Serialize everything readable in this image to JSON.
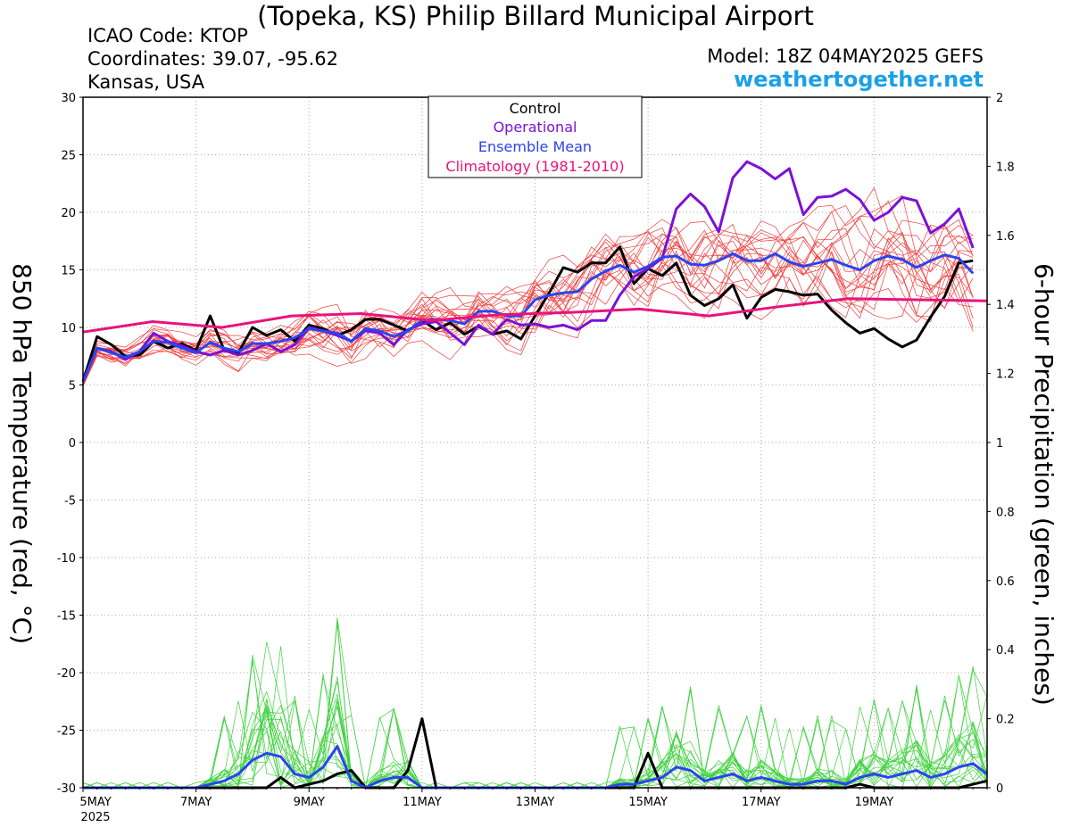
{
  "header": {
    "title": "(Topeka, KS) Philip Billard Municipal Airport",
    "icao": "ICAO Code: KTOP",
    "coordinates": "Coordinates: 39.07, -95.62",
    "region": "Kansas, USA",
    "model": "Model: 18Z 04MAY2025 GEFS",
    "brand": "weathertogether.net"
  },
  "colors": {
    "control": "#000000",
    "operational": "#7b11d6",
    "ensemble_mean": "#2a44f0",
    "climatology": "#e8137c",
    "members_temp": "#f03c3c",
    "members_precip": "#3fd23f",
    "grid": "#aaaaaa",
    "brand": "#1aa0e8"
  },
  "chart_data": {
    "type": "line",
    "title": "(Topeka, KS) Philip Billard Municipal Airport",
    "ylabel": "850 hPa Temperature (red, °C)",
    "y2label": "6-hour Precipitation (green, inches)",
    "ylim": [
      -30,
      30
    ],
    "y2lim": [
      0,
      2
    ],
    "yticks": [
      "30",
      "25",
      "20",
      "15",
      "10",
      "5",
      "0",
      "-5",
      "-10",
      "-15",
      "-20",
      "-25",
      "-30"
    ],
    "y2ticks": [
      "2",
      "1.8",
      "1.6",
      "1.4",
      "1.2",
      "1",
      "0.8",
      "0.6",
      "0.4",
      "0.2",
      "0"
    ],
    "xlim": [
      0,
      64
    ],
    "x_unit": "6-hour steps from 00Z 5 May 2025",
    "xticks": [
      {
        "x": 0,
        "label": "5MAY",
        "sub": "2025"
      },
      {
        "x": 8,
        "label": "7MAY"
      },
      {
        "x": 16,
        "label": "9MAY"
      },
      {
        "x": 24,
        "label": "11MAY"
      },
      {
        "x": 32,
        "label": "13MAY"
      },
      {
        "x": 40,
        "label": "15MAY"
      },
      {
        "x": 48,
        "label": "17MAY"
      },
      {
        "x": 56,
        "label": "19MAY"
      }
    ],
    "grid": true,
    "legend_position": "top-center",
    "legend": [
      "Control",
      "Operational",
      "Ensemble Mean",
      "Climatology (1981-2010)"
    ],
    "series": [
      {
        "name": "Control",
        "axis": "temp",
        "color": "#000000",
        "width": 3,
        "values": [
          5.3,
          9.2,
          8.5,
          7.5,
          7.6,
          8.8,
          8.2,
          8.6,
          8.0,
          11.0,
          8.0,
          7.8,
          10.0,
          9.3,
          9.8,
          8.8,
          10.2,
          9.9,
          9.3,
          9.8,
          10.7,
          10.7,
          10.2,
          9.7,
          10.6,
          9.8,
          10.4,
          9.4,
          10.1,
          9.4,
          9.7,
          9.0,
          11.0,
          13.0,
          15.2,
          14.8,
          15.6,
          15.6,
          17.0,
          13.8,
          15.1,
          14.5,
          15.6,
          12.8,
          11.9,
          12.5,
          13.7,
          10.8,
          12.6,
          13.3,
          13.1,
          12.8,
          12.9,
          11.5,
          10.4,
          9.5,
          9.9,
          9.0,
          8.3,
          8.9,
          10.9,
          12.7,
          15.6,
          15.8
        ]
      },
      {
        "name": "Operational",
        "axis": "temp",
        "color": "#7b11d6",
        "width": 3,
        "values": [
          5.3,
          8.2,
          7.9,
          7.2,
          7.9,
          9.5,
          8.8,
          8.4,
          7.9,
          7.6,
          8.0,
          7.6,
          8.0,
          8.6,
          7.9,
          8.5,
          10.0,
          9.7,
          9.3,
          8.8,
          9.7,
          9.5,
          8.5,
          9.8,
          10.3,
          10.5,
          9.5,
          8.5,
          10.2,
          9.4,
          10.7,
          10.2,
          10.3,
          10.0,
          10.2,
          9.8,
          10.6,
          10.6,
          12.8,
          14.4,
          15.1,
          16.0,
          20.3,
          21.6,
          20.5,
          18.3,
          23.0,
          24.4,
          23.8,
          22.9,
          23.8,
          19.8,
          21.3,
          21.4,
          22.0,
          21.1,
          19.3,
          20.0,
          21.3,
          21.0,
          18.2,
          19.0,
          20.3,
          16.9
        ]
      },
      {
        "name": "Ensemble Mean",
        "axis": "temp",
        "color": "#2a44f0",
        "width": 3,
        "values": [
          5.3,
          8.2,
          7.8,
          7.4,
          7.9,
          8.8,
          8.7,
          8.2,
          7.8,
          8.7,
          8.2,
          7.9,
          8.6,
          8.6,
          8.8,
          9.1,
          9.9,
          9.7,
          9.5,
          8.8,
          9.9,
          9.7,
          9.2,
          9.7,
          10.6,
          10.7,
          10.6,
          10.3,
          11.4,
          11.4,
          11.0,
          11.0,
          12.4,
          12.8,
          13.0,
          13.1,
          14.2,
          14.9,
          15.4,
          14.8,
          15.3,
          16.1,
          16.2,
          15.5,
          15.4,
          15.8,
          16.4,
          15.8,
          15.8,
          16.4,
          15.7,
          15.3,
          15.6,
          15.9,
          15.4,
          15.0,
          15.8,
          16.2,
          15.9,
          15.2,
          15.8,
          16.3,
          16.0,
          14.7
        ]
      },
      {
        "name": "Climatology (1981-2010)",
        "axis": "temp",
        "color": "#e8137c",
        "width": 3,
        "values": [
          9.6,
          10.5,
          10.0,
          11.0,
          11.2,
          10.6,
          11.1,
          11.3,
          11.6,
          11.0,
          11.8,
          12.5,
          12.4,
          12.3
        ]
      },
      {
        "name": "Control precipitation",
        "axis": "precip",
        "color": "#000000",
        "width": 3,
        "values": [
          0,
          0,
          0,
          0,
          0,
          0,
          0,
          0,
          0,
          0,
          0,
          0,
          0,
          0,
          0.03,
          0,
          0.01,
          0.02,
          0.04,
          0.05,
          0,
          0,
          0,
          0.05,
          0.2,
          0,
          0,
          0,
          0,
          0,
          0,
          0,
          0,
          0,
          0,
          0,
          0,
          0,
          0,
          0,
          0.1,
          0,
          0,
          0,
          0,
          0,
          0,
          0,
          0,
          0,
          0,
          0,
          0,
          0,
          0,
          0.01,
          0,
          0,
          0,
          0,
          0,
          0,
          0,
          0.01,
          0.02
        ]
      },
      {
        "name": "Ensemble Mean precipitation",
        "axis": "precip",
        "color": "#2a44f0",
        "width": 3,
        "values": [
          0,
          0,
          0,
          0,
          0,
          0,
          0,
          0,
          0,
          0.01,
          0.02,
          0.04,
          0.08,
          0.1,
          0.09,
          0.04,
          0.03,
          0.06,
          0.12,
          0.02,
          0,
          0.02,
          0.03,
          0.03,
          0,
          0,
          0,
          0,
          0,
          0,
          0,
          0,
          0,
          0,
          0,
          0,
          0,
          0,
          0.01,
          0.01,
          0.02,
          0.03,
          0.06,
          0.05,
          0.02,
          0.03,
          0.04,
          0.02,
          0.03,
          0.02,
          0.01,
          0.01,
          0.02,
          0.02,
          0.01,
          0.03,
          0.04,
          0.03,
          0.04,
          0.05,
          0.03,
          0.04,
          0.06,
          0.07,
          0.04
        ]
      }
    ],
    "members_note": "ensemble members drawn as thin red (temperature) and thin green (precipitation) lines"
  }
}
